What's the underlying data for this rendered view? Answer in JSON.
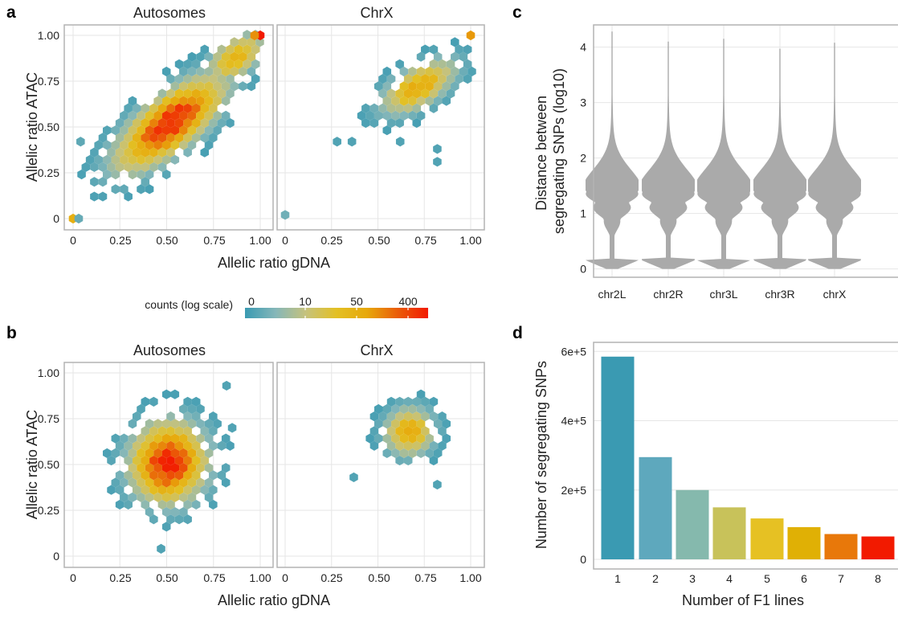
{
  "panel_labels": [
    "a",
    "b",
    "c",
    "d"
  ],
  "legend": {
    "title": "counts (log scale)",
    "ticks": [
      "0",
      "10",
      "50",
      "400"
    ],
    "gradient": [
      "#3a9ab2",
      "#85b7b9",
      "#c6c27c",
      "#e3c024",
      "#e7a80b",
      "#ea5c08",
      "#f21a00"
    ]
  },
  "chart_data": [
    {
      "id": "a",
      "type": "heatmap",
      "subtype": "hexbin",
      "facets": [
        "Autosomes",
        "ChrX"
      ],
      "xlabel": "Allelic ratio gDNA",
      "ylabel": "Allelic ratio ATAC",
      "xlim": [
        0,
        1
      ],
      "ylim": [
        0,
        1
      ],
      "xticks": [
        "0",
        "0.25",
        "0.50",
        "0.75",
        "1.00"
      ],
      "yticks": [
        "0",
        "0.25",
        "0.50",
        "0.75",
        "1.00"
      ],
      "grid": true,
      "clusters": [
        {
          "facet": 0,
          "cx": 0.52,
          "cy": 0.52,
          "sx": 0.17,
          "sy": 0.15,
          "rho": 0.72,
          "peak": 1.0
        },
        {
          "facet": 0,
          "cx": 0.87,
          "cy": 0.88,
          "sx": 0.09,
          "sy": 0.08,
          "rho": 0.5,
          "peak": 0.55
        },
        {
          "facet": 1,
          "cx": 0.72,
          "cy": 0.72,
          "sx": 0.12,
          "sy": 0.09,
          "rho": 0.6,
          "peak": 0.6
        }
      ],
      "points": [
        {
          "facet": 0,
          "x": 1.0,
          "y": 1.0,
          "level": 1.0
        },
        {
          "facet": 0,
          "x": 0.97,
          "y": 1.0,
          "level": 0.72
        },
        {
          "facet": 0,
          "x": 0.0,
          "y": 0.0,
          "level": 0.62
        },
        {
          "facet": 0,
          "x": 0.03,
          "y": 0.0,
          "level": 0.1
        },
        {
          "facet": 0,
          "x": 0.04,
          "y": 0.42,
          "level": 0.08
        },
        {
          "facet": 1,
          "x": 1.0,
          "y": 1.0,
          "level": 0.7
        },
        {
          "facet": 1,
          "x": 0.0,
          "y": 0.02,
          "level": 0.12
        },
        {
          "facet": 1,
          "x": 0.28,
          "y": 0.42,
          "level": 0.05
        },
        {
          "facet": 1,
          "x": 0.36,
          "y": 0.42,
          "level": 0.05
        },
        {
          "facet": 1,
          "x": 0.62,
          "y": 0.42,
          "level": 0.05
        },
        {
          "facet": 1,
          "x": 0.82,
          "y": 0.38,
          "level": 0.05
        },
        {
          "facet": 1,
          "x": 0.82,
          "y": 0.31,
          "level": 0.05
        }
      ]
    },
    {
      "id": "b",
      "type": "heatmap",
      "subtype": "hexbin",
      "facets": [
        "Autosomes",
        "ChrX"
      ],
      "xlabel": "Allelic ratio gDNA",
      "ylabel": "Allelic ratio ATAC",
      "xlim": [
        0,
        1
      ],
      "ylim": [
        0,
        1
      ],
      "xticks": [
        "0",
        "0.25",
        "0.50",
        "0.75",
        "1.00"
      ],
      "yticks": [
        "0",
        "0.25",
        "0.50",
        "0.75",
        "1.00"
      ],
      "grid": true,
      "clusters": [
        {
          "facet": 0,
          "cx": 0.51,
          "cy": 0.51,
          "sx": 0.12,
          "sy": 0.13,
          "rho": 0.05,
          "peak": 1.0
        },
        {
          "facet": 1,
          "cx": 0.67,
          "cy": 0.68,
          "sx": 0.08,
          "sy": 0.08,
          "rho": 0.05,
          "peak": 0.58
        }
      ],
      "points": [
        {
          "facet": 0,
          "x": 0.82,
          "y": 0.93,
          "level": 0.05
        },
        {
          "facet": 0,
          "x": 0.47,
          "y": 0.04,
          "level": 0.05
        },
        {
          "facet": 0,
          "x": 0.85,
          "y": 0.7,
          "level": 0.05
        },
        {
          "facet": 1,
          "x": 0.37,
          "y": 0.43,
          "level": 0.05
        },
        {
          "facet": 1,
          "x": 0.82,
          "y": 0.39,
          "level": 0.05
        }
      ]
    },
    {
      "id": "c",
      "type": "violin",
      "categories": [
        "chr2L",
        "chr2R",
        "chr3L",
        "chr3R",
        "chrX"
      ],
      "ylabel": "Distance between segregating SNPs (log10)",
      "ylabel_lines": [
        "Distance between",
        "segregating SNPs (log10)"
      ],
      "xlabel": "",
      "ylim": [
        -0.15,
        4.4
      ],
      "yticks": [
        "0",
        "1",
        "2",
        "3",
        "4"
      ],
      "max": [
        4.28,
        4.1,
        4.15,
        3.97,
        4.08
      ],
      "fill": "#aaaaaa",
      "grid": true
    },
    {
      "id": "d",
      "type": "bar",
      "categories": [
        "1",
        "2",
        "3",
        "4",
        "5",
        "6",
        "7",
        "8"
      ],
      "values": [
        585000,
        295000,
        200000,
        150000,
        118000,
        93000,
        73000,
        66000
      ],
      "colors": [
        "#3a9ab2",
        "#5ea8bd",
        "#85b9ad",
        "#c8c25a",
        "#e6c123",
        "#e0b005",
        "#e8780a",
        "#f21a00"
      ],
      "xlabel": "Number of F1 lines",
      "ylabel": "Number of segregating SNPs",
      "ylim": [
        0,
        610000
      ],
      "yticks": [
        "0",
        "2e+5",
        "4e+5",
        "6e+5"
      ],
      "grid": true
    }
  ]
}
